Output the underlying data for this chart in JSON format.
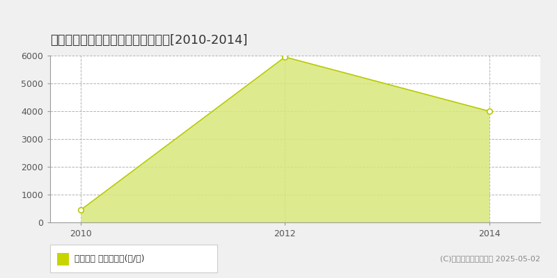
{
  "title": "旭川市東鷹栖１３線　農地価格推移[2010-2014]",
  "years": [
    2010,
    2012,
    2014
  ],
  "values": [
    450,
    5950,
    4000
  ],
  "line_color": "#b8c800",
  "fill_color": "#d8e87a",
  "fill_alpha": 0.85,
  "marker_color": "white",
  "marker_edge_color": "#b8c800",
  "ylim": [
    0,
    6000
  ],
  "yticks": [
    0,
    1000,
    2000,
    3000,
    4000,
    5000,
    6000
  ],
  "xlim": [
    2009.7,
    2014.5
  ],
  "xticks": [
    2010,
    2012,
    2014
  ],
  "bg_color": "#f0f0f0",
  "plot_bg_color": "#ffffff",
  "grid_color": "#aaaaaa",
  "legend_label": "農地価格 平均坪単価(円/坪)",
  "legend_color": "#c8d400",
  "copyright_text": "(C)土地価格ドットコム 2025-05-02",
  "title_fontsize": 13,
  "tick_fontsize": 9,
  "legend_fontsize": 9,
  "copyright_fontsize": 8
}
